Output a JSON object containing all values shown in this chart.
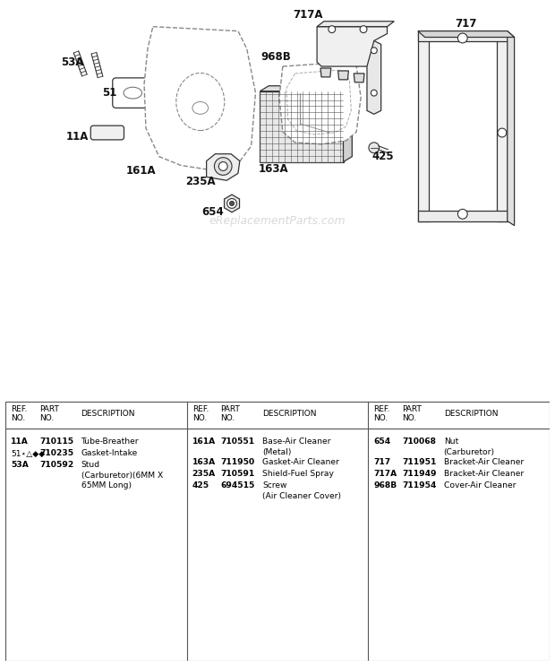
{
  "bg_color": "#ffffff",
  "line_color": "#333333",
  "label_color": "#111111",
  "watermark": "eReplacementParts.com",
  "watermark_color": "#cccccc",
  "col1_parts": [
    {
      "ref": "11A",
      "part": "710115",
      "desc": "Tube-Breather",
      "bold_ref": true
    },
    {
      "ref": "51⋆△◆◆",
      "part": "710235",
      "desc": "Gasket-Intake",
      "bold_ref": false
    },
    {
      "ref": "53A",
      "part": "710592",
      "desc": "Stud\n(Carburetor)(6MM X\n65MM Long)",
      "bold_ref": true
    }
  ],
  "col2_parts": [
    {
      "ref": "161A",
      "part": "710551",
      "desc": "Base-Air Cleaner\n(Metal)",
      "bold_ref": true
    },
    {
      "ref": "163A",
      "part": "711950",
      "desc": "Gasket-Air Cleaner",
      "bold_ref": true
    },
    {
      "ref": "235A",
      "part": "710591",
      "desc": "Shield-Fuel Spray",
      "bold_ref": true
    },
    {
      "ref": "425",
      "part": "694515",
      "desc": "Screw\n(Air Cleaner Cover)",
      "bold_ref": true
    }
  ],
  "col3_parts": [
    {
      "ref": "654",
      "part": "710068",
      "desc": "Nut\n(Carburetor)",
      "bold_ref": true
    },
    {
      "ref": "717",
      "part": "711951",
      "desc": "Bracket-Air Cleaner",
      "bold_ref": true
    },
    {
      "ref": "717A",
      "part": "711949",
      "desc": "Bracket-Air Cleaner",
      "bold_ref": true
    },
    {
      "ref": "968B",
      "part": "711954",
      "desc": "Cover-Air Cleaner",
      "bold_ref": true
    }
  ]
}
